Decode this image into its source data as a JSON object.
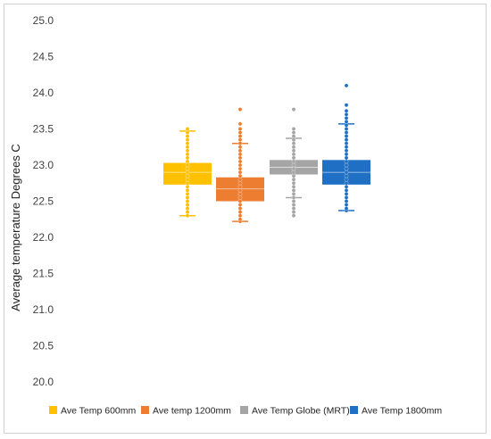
{
  "chart_data": {
    "type": "box",
    "title": "",
    "xlabel": "",
    "ylabel": "Average temperature Degrees C",
    "ylim": [
      20.0,
      25.0
    ],
    "yticks": [
      20.0,
      20.5,
      21.0,
      21.5,
      22.0,
      22.5,
      23.0,
      23.5,
      24.0,
      24.5,
      25.0
    ],
    "grid": false,
    "legend_position": "bottom",
    "series": [
      {
        "name": "Ave Temp 600mm",
        "color": "#FFC000",
        "min": 22.3,
        "q1": 22.73,
        "median": 22.9,
        "q3": 23.03,
        "max": 23.47,
        "points": [
          22.3,
          22.35,
          22.4,
          22.45,
          22.5,
          22.55,
          22.6,
          22.65,
          22.7,
          22.75,
          22.8,
          22.85,
          22.9,
          22.95,
          23.0,
          23.05,
          23.1,
          23.15,
          23.2,
          23.25,
          23.3,
          23.35,
          23.4,
          23.45,
          23.5
        ]
      },
      {
        "name": "Ave temp 1200mm",
        "color": "#ED7D31",
        "min": 22.22,
        "q1": 22.5,
        "median": 22.67,
        "q3": 22.83,
        "max": 23.3,
        "points": [
          22.22,
          22.25,
          22.3,
          22.35,
          22.4,
          22.45,
          22.5,
          22.55,
          22.6,
          22.65,
          22.7,
          22.75,
          22.8,
          22.85,
          22.9,
          22.95,
          23.0,
          23.05,
          23.1,
          23.15,
          23.2,
          23.25,
          23.3,
          23.35,
          23.4,
          23.45,
          23.5,
          23.57,
          23.77
        ]
      },
      {
        "name": "Ave Temp Globe (MRT)",
        "color": "#A5A5A5",
        "min": 22.55,
        "q1": 22.87,
        "median": 22.97,
        "q3": 23.07,
        "max": 23.37,
        "points": [
          22.3,
          22.35,
          22.4,
          22.45,
          22.5,
          22.55,
          22.6,
          22.65,
          22.7,
          22.75,
          22.8,
          22.85,
          22.9,
          22.95,
          23.0,
          23.05,
          23.1,
          23.15,
          23.2,
          23.25,
          23.3,
          23.35,
          23.4,
          23.45,
          23.5,
          23.77
        ]
      },
      {
        "name": "Ave Temp 1800mm",
        "color": "#1F6FC5",
        "min": 22.37,
        "q1": 22.73,
        "median": 22.9,
        "q3": 23.07,
        "max": 23.57,
        "points": [
          22.37,
          22.4,
          22.45,
          22.5,
          22.55,
          22.6,
          22.65,
          22.7,
          22.75,
          22.8,
          22.85,
          22.9,
          22.95,
          23.0,
          23.05,
          23.1,
          23.15,
          23.2,
          23.25,
          23.3,
          23.35,
          23.4,
          23.45,
          23.5,
          23.55,
          23.6,
          23.65,
          23.7,
          23.75,
          23.83,
          24.1
        ]
      }
    ]
  }
}
